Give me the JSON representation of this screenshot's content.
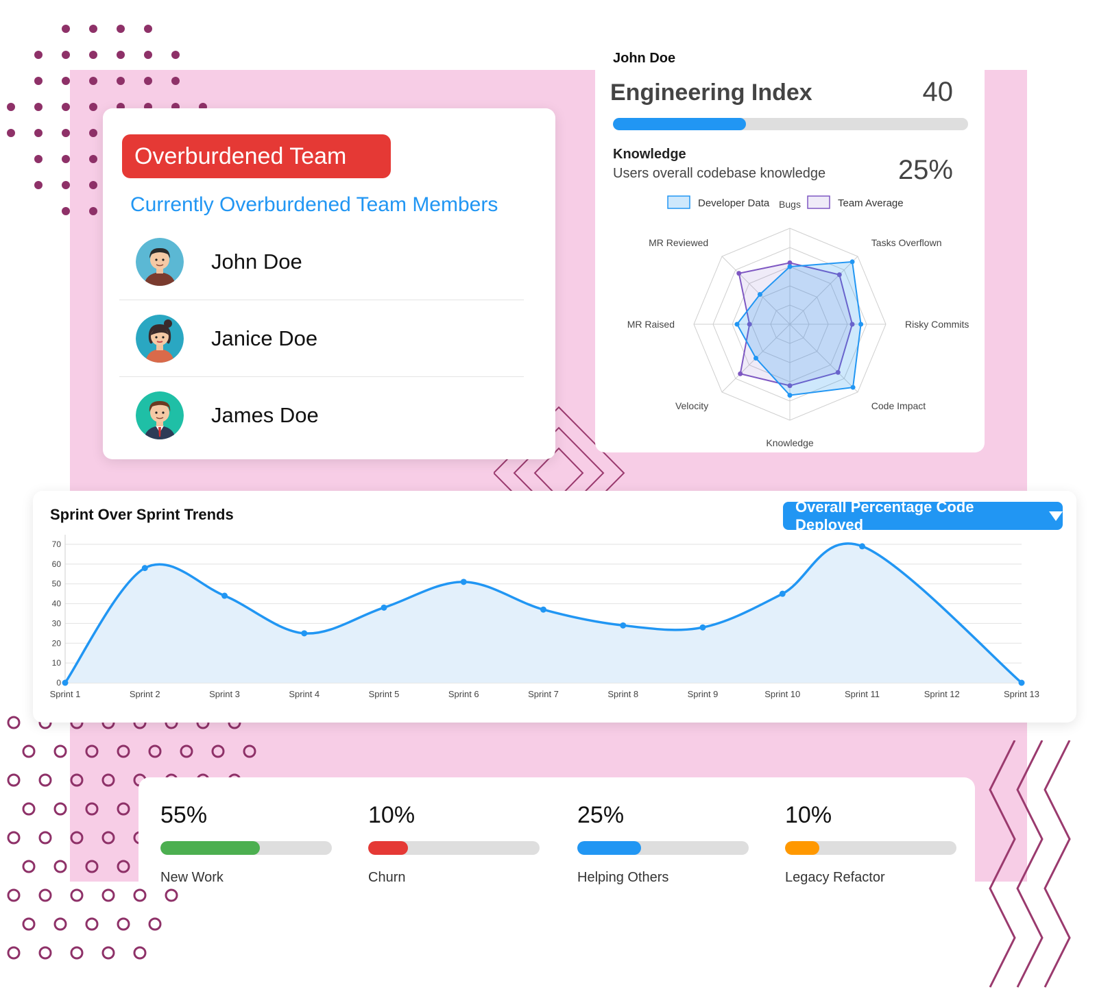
{
  "team_card": {
    "badge_label": "Overburdened Team",
    "subtitle": "Currently Overburdened Team Members",
    "members": [
      {
        "name": "John Doe",
        "avatar": "man-avatar-icon"
      },
      {
        "name": "Janice Doe",
        "avatar": "woman-avatar-icon"
      },
      {
        "name": "James Doe",
        "avatar": "businessman-avatar-icon"
      }
    ]
  },
  "engineering_card": {
    "user_name": "John Doe",
    "index_label": "Engineering Index",
    "index_value": "40",
    "index_fraction": 0.375,
    "knowledge_title": "Knowledge",
    "knowledge_desc": "Users overall codebase knowledge",
    "knowledge_value": "25%",
    "colors": {
      "accent": "#2196f3",
      "team": "#7e57c2"
    }
  },
  "trends_card": {
    "title": "Sprint Over Sprint Trends",
    "metric_select": "Overall Percentage Code Deployed"
  },
  "stats": [
    {
      "percent": "55%",
      "label": "New Work",
      "fraction": 0.58,
      "color": "#4caf50"
    },
    {
      "percent": "10%",
      "label": "Churn",
      "fraction": 0.23,
      "color": "#e53935"
    },
    {
      "percent": "25%",
      "label": "Helping Others",
      "fraction": 0.37,
      "color": "#2196f3"
    },
    {
      "percent": "10%",
      "label": "Legacy Refactor",
      "fraction": 0.2,
      "color": "#ff9800"
    }
  ],
  "chart_data": [
    {
      "type": "radar",
      "axes": [
        "Bugs",
        "Tasks Overflown",
        "Risky Commits",
        "Code Impact",
        "Knowledge",
        "Velocity",
        "MR Raised",
        "MR Reviewed"
      ],
      "series": [
        {
          "name": "Developer Data",
          "values": [
            0.6,
            0.92,
            0.74,
            0.93,
            0.74,
            0.5,
            0.55,
            0.44
          ],
          "color": "#2196f3"
        },
        {
          "name": "Team Average",
          "values": [
            0.64,
            0.73,
            0.65,
            0.71,
            0.64,
            0.73,
            0.42,
            0.75
          ],
          "color": "#7e57c2"
        }
      ],
      "max": 1
    },
    {
      "type": "area",
      "categories": [
        "Sprint 1",
        "Sprint 2",
        "Sprint 3",
        "Sprint 4",
        "Sprint 5",
        "Sprint 6",
        "Sprint 7",
        "Sprint 8",
        "Sprint 9",
        "Sprint 10",
        "Sprint 11",
        "Sprint 12",
        "Sprint 13"
      ],
      "point_positions": [
        0,
        1,
        2,
        3,
        4,
        5,
        6,
        7,
        8,
        9,
        10,
        11.6,
        12
      ],
      "values": [
        0,
        58,
        44,
        25,
        38,
        51,
        37,
        29,
        28,
        45,
        69,
        null,
        0
      ],
      "yticks": [
        0,
        10,
        20,
        30,
        40,
        50,
        60,
        70
      ],
      "ylim": [
        0,
        70
      ],
      "grid": true,
      "color": "#2196f3",
      "fill": "#e3f0fb"
    }
  ]
}
